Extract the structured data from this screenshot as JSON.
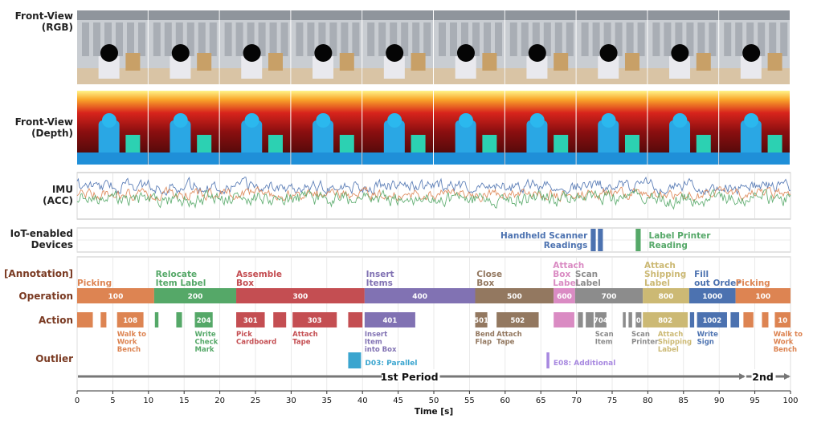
{
  "row_labels": {
    "rgb_line1": "Front-View",
    "rgb_line2": "(RGB)",
    "depth_line1": "Front-View",
    "depth_line2": "(Depth)",
    "imu_line1": "IMU",
    "imu_line2": "(ACC)",
    "iot_line1": "IoT-enabled",
    "iot_line2": "Devices",
    "annotation": "[Annotation]",
    "operation": "Operation",
    "action": "Action",
    "outlier": "Outlier"
  },
  "colors": {
    "picking": "#dd8452",
    "relocate": "#55a868",
    "assemble": "#c44e52",
    "insert": "#8172b3",
    "close": "#937860",
    "attach_label": "#da8bc3",
    "scan": "#8c8c8c",
    "attach_shipping": "#ccb974",
    "fill_order": "#4c72b0",
    "outlier_d03": "#3aa5cf",
    "outlier_e08": "#a889e0"
  },
  "chart_data": {
    "type": "timeline",
    "xlabel": "Time [s]",
    "xlim": [
      0,
      100
    ],
    "xticks": [
      0,
      5,
      10,
      15,
      20,
      25,
      30,
      35,
      40,
      45,
      50,
      55,
      60,
      65,
      70,
      75,
      80,
      85,
      90,
      95,
      100
    ],
    "video_frames": 10,
    "operation_labels": [
      {
        "text": "Picking",
        "x": 0,
        "color": "#dd8452"
      },
      {
        "text": "Relocate\nItem Label",
        "x": 11,
        "color": "#55a868"
      },
      {
        "text": "Assemble\nBox",
        "x": 22.3,
        "color": "#c44e52"
      },
      {
        "text": "Insert\nItems",
        "x": 40.5,
        "color": "#8172b3"
      },
      {
        "text": "Close\nBox",
        "x": 56,
        "color": "#937860"
      },
      {
        "text": "Attach\nBox\nLabel",
        "x": 66.7,
        "color": "#da8bc3"
      },
      {
        "text": "Scan\nLabel",
        "x": 69.8,
        "color": "#8c8c8c"
      },
      {
        "text": "Attach\nShipping\nLabel",
        "x": 79.5,
        "color": "#ccb974"
      },
      {
        "text": "Fill\nout Order",
        "x": 86.5,
        "color": "#4c72b0"
      },
      {
        "text": "Picking",
        "x": 92.3,
        "color": "#dd8452"
      }
    ],
    "operations": [
      {
        "label": "100",
        "start": 0,
        "end": 10.8,
        "color": "#dd8452"
      },
      {
        "label": "200",
        "start": 10.8,
        "end": 22.3,
        "color": "#55a868"
      },
      {
        "label": "300",
        "start": 22.3,
        "end": 40.3,
        "color": "#c44e52"
      },
      {
        "label": "400",
        "start": 40.3,
        "end": 55.8,
        "color": "#8172b3"
      },
      {
        "label": "500",
        "start": 55.8,
        "end": 66.8,
        "color": "#937860"
      },
      {
        "label": "600",
        "start": 66.8,
        "end": 69.8,
        "color": "#da8bc3"
      },
      {
        "label": "700",
        "start": 69.8,
        "end": 79.3,
        "color": "#8c8c8c"
      },
      {
        "label": "800",
        "start": 79.3,
        "end": 85.8,
        "color": "#ccb974"
      },
      {
        "label": "1000",
        "start": 85.8,
        "end": 92.3,
        "color": "#4c72b0"
      },
      {
        "label": "100",
        "start": 92.3,
        "end": 100,
        "color": "#dd8452"
      }
    ],
    "actions": [
      {
        "label": "",
        "start": 0,
        "end": 2.2,
        "color": "#dd8452"
      },
      {
        "label": "",
        "start": 3.3,
        "end": 4.1,
        "color": "#dd8452"
      },
      {
        "label": "108",
        "start": 5.6,
        "end": 9.3,
        "color": "#dd8452"
      },
      {
        "label": "",
        "start": 10.9,
        "end": 11.4,
        "color": "#55a868"
      },
      {
        "label": "",
        "start": 13.9,
        "end": 14.7,
        "color": "#55a868"
      },
      {
        "label": "204",
        "start": 16.5,
        "end": 19.0,
        "color": "#55a868"
      },
      {
        "label": "301",
        "start": 22.3,
        "end": 26.3,
        "color": "#c44e52"
      },
      {
        "label": "",
        "start": 27.5,
        "end": 29.3,
        "color": "#c44e52"
      },
      {
        "label": "303",
        "start": 30.2,
        "end": 36.4,
        "color": "#c44e52"
      },
      {
        "label": "",
        "start": 38.0,
        "end": 40.0,
        "color": "#c44e52"
      },
      {
        "label": "401",
        "start": 40.3,
        "end": 47.4,
        "color": "#8172b3"
      },
      {
        "label": "501",
        "start": 55.8,
        "end": 57.5,
        "color": "#937860"
      },
      {
        "label": "502",
        "start": 58.8,
        "end": 64.7,
        "color": "#937860"
      },
      {
        "label": "",
        "start": 66.8,
        "end": 69.7,
        "color": "#da8bc3"
      },
      {
        "label": "",
        "start": 70.2,
        "end": 70.9,
        "color": "#8c8c8c"
      },
      {
        "label": "",
        "start": 71.3,
        "end": 72.4,
        "color": "#8c8c8c"
      },
      {
        "label": "704",
        "start": 72.6,
        "end": 74.2,
        "color": "#8c8c8c"
      },
      {
        "label": "",
        "start": 76.5,
        "end": 76.9,
        "color": "#8c8c8c"
      },
      {
        "label": "",
        "start": 77.3,
        "end": 77.8,
        "color": "#8c8c8c"
      },
      {
        "label": "0",
        "start": 78.3,
        "end": 79.1,
        "color": "#8c8c8c"
      },
      {
        "label": "802",
        "start": 79.3,
        "end": 85.6,
        "color": "#ccb974"
      },
      {
        "label": "",
        "start": 85.9,
        "end": 86.5,
        "color": "#4c72b0"
      },
      {
        "label": "1002",
        "start": 86.9,
        "end": 91.1,
        "color": "#4c72b0"
      },
      {
        "label": "",
        "start": 91.6,
        "end": 92.8,
        "color": "#4c72b0"
      },
      {
        "label": "",
        "start": 93.4,
        "end": 94.8,
        "color": "#dd8452"
      },
      {
        "label": "",
        "start": 96.0,
        "end": 96.9,
        "color": "#dd8452"
      },
      {
        "label": "10",
        "start": 97.8,
        "end": 100,
        "color": "#dd8452"
      }
    ],
    "action_captions": [
      {
        "text": "Walk to\nWork\nBench",
        "x": 5.6,
        "color": "#dd8452"
      },
      {
        "text": "Write\nCheck\nMark",
        "x": 16.5,
        "color": "#55a868"
      },
      {
        "text": "Pick\nCardboard",
        "x": 22.3,
        "color": "#c44e52"
      },
      {
        "text": "Attach\nTape",
        "x": 30.2,
        "color": "#c44e52"
      },
      {
        "text": "Insert\nItem\ninto Box",
        "x": 40.3,
        "color": "#8172b3"
      },
      {
        "text": "Bend\nFlap",
        "x": 55.8,
        "color": "#937860"
      },
      {
        "text": "Attach\nTape",
        "x": 58.8,
        "color": "#937860"
      },
      {
        "text": "Scan\nItem",
        "x": 72.6,
        "color": "#8c8c8c"
      },
      {
        "text": "Scan\nPrinter",
        "x": 77.7,
        "color": "#8c8c8c"
      },
      {
        "text": "Attach\nShipping\nLabel",
        "x": 81.4,
        "color": "#ccb974"
      },
      {
        "text": "Write\nSign",
        "x": 86.9,
        "color": "#4c72b0"
      },
      {
        "text": "Walk to\nWork\nBench",
        "x": 97.6,
        "color": "#dd8452"
      }
    ],
    "iot_devices": [
      {
        "name": "Handheld Scanner\nReadings",
        "color": "#4c72b0",
        "events": [
          [
            72.0,
            72.7
          ],
          [
            73.0,
            73.7
          ]
        ]
      },
      {
        "name": "Label Printer\nReading",
        "color": "#55a868",
        "events": [
          [
            78.3,
            79.0
          ]
        ]
      }
    ],
    "outliers": [
      {
        "label": "D03: Parallel",
        "start": 38.0,
        "end": 39.8,
        "color": "#3aa5cf"
      },
      {
        "label": "E08: Additional",
        "start": 65.8,
        "end": 66.2,
        "color": "#a889e0"
      }
    ],
    "periods": [
      {
        "label": "1st Period",
        "start": 0,
        "end": 93.7
      },
      {
        "label": "2nd",
        "start": 93.7,
        "end": 100
      }
    ]
  }
}
